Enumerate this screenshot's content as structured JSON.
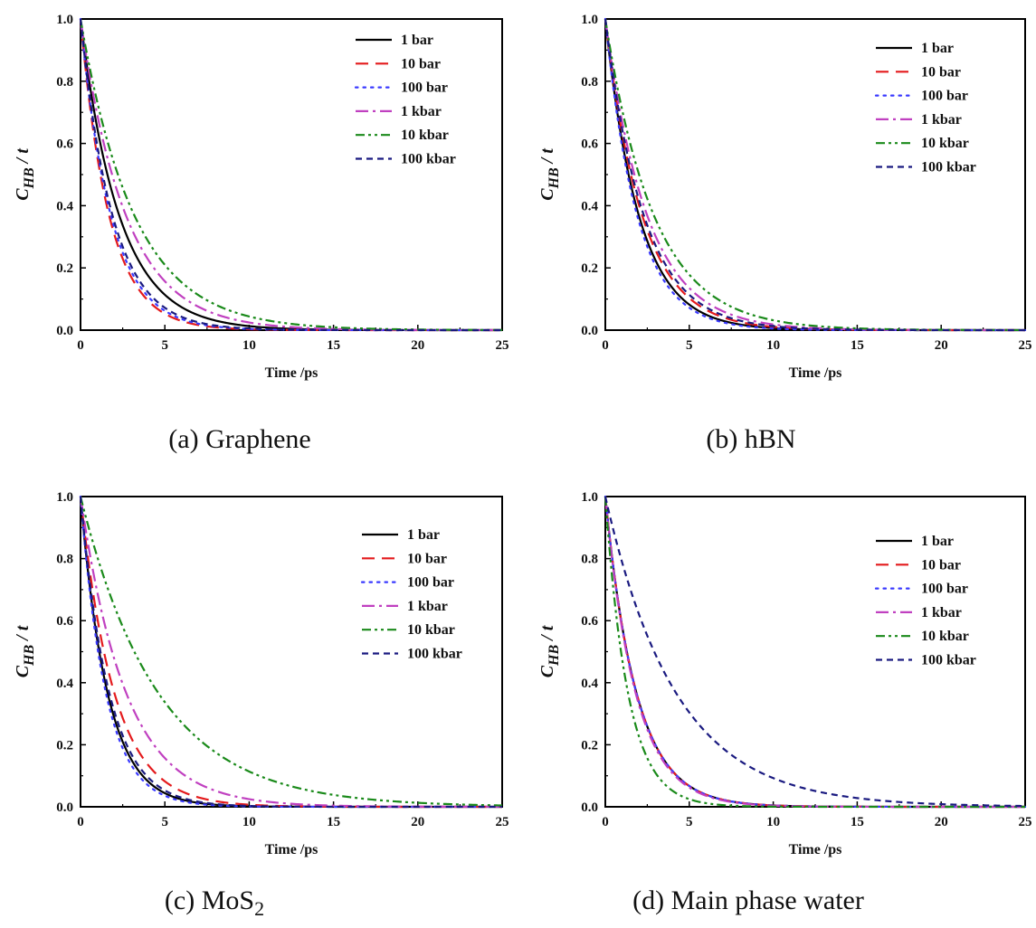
{
  "chart_data": [
    {
      "type": "line",
      "caption": "(a) Graphene",
      "xlabel": "Time /ps",
      "ylabel": "C_HB / t",
      "xlim": [
        0,
        25
      ],
      "ylim": [
        0,
        1.0
      ],
      "xticks": [
        0,
        5,
        10,
        15,
        20,
        25
      ],
      "yticks": [
        0.0,
        0.2,
        0.4,
        0.6,
        0.8,
        1.0
      ],
      "legend_position": "top-right",
      "series": [
        {
          "name": "1 bar",
          "color": "#000000",
          "dash": "solid",
          "tau": 2.3
        },
        {
          "name": "10 bar",
          "color": "#e41a1c",
          "dash": "long-dash",
          "tau": 1.7
        },
        {
          "name": "100 bar",
          "color": "#3a3aff",
          "dash": "dot",
          "tau": 1.8
        },
        {
          "name": "1 kbar",
          "color": "#c040c0",
          "dash": "dash-dot",
          "tau": 2.7
        },
        {
          "name": "10 kbar",
          "color": "#1a8a1a",
          "dash": "dash-dot-dot",
          "tau": 3.2
        },
        {
          "name": "100 kbar",
          "color": "#1a1a80",
          "dash": "short-dash",
          "tau": 1.9
        }
      ]
    },
    {
      "type": "line",
      "caption": "(b) hBN",
      "xlabel": "Time /ps",
      "ylabel": "C_HB / t",
      "xlim": [
        0,
        25
      ],
      "ylim": [
        0,
        1.0
      ],
      "xticks": [
        0,
        5,
        10,
        15,
        20,
        25
      ],
      "yticks": [
        0.0,
        0.2,
        0.4,
        0.6,
        0.8,
        1.0
      ],
      "legend_position": "top-right",
      "series": [
        {
          "name": "1 bar",
          "color": "#000000",
          "dash": "solid",
          "tau": 2.0
        },
        {
          "name": "10 bar",
          "color": "#e41a1c",
          "dash": "long-dash",
          "tau": 2.2
        },
        {
          "name": "100 bar",
          "color": "#3a3aff",
          "dash": "dot",
          "tau": 1.9
        },
        {
          "name": "1 kbar",
          "color": "#c040c0",
          "dash": "dash-dot",
          "tau": 2.5
        },
        {
          "name": "10 kbar",
          "color": "#1a8a1a",
          "dash": "dash-dot-dot",
          "tau": 2.9
        },
        {
          "name": "100 kbar",
          "color": "#1a1a80",
          "dash": "short-dash",
          "tau": 2.3
        }
      ]
    },
    {
      "type": "line",
      "caption": "(c) MoS",
      "caption_subscript": "2",
      "xlabel": "Time /ps",
      "ylabel": "C_HB / t",
      "xlim": [
        0,
        25
      ],
      "ylim": [
        0,
        1.0
      ],
      "xticks": [
        0,
        5,
        10,
        15,
        20,
        25
      ],
      "yticks": [
        0.0,
        0.2,
        0.4,
        0.6,
        0.8,
        1.0
      ],
      "legend_position": "top-right",
      "series": [
        {
          "name": "1 bar",
          "color": "#000000",
          "dash": "solid",
          "tau": 1.6
        },
        {
          "name": "10 bar",
          "color": "#e41a1c",
          "dash": "long-dash",
          "tau": 2.0
        },
        {
          "name": "100 bar",
          "color": "#3a3aff",
          "dash": "dot",
          "tau": 1.5
        },
        {
          "name": "1 kbar",
          "color": "#c040c0",
          "dash": "dash-dot",
          "tau": 2.7
        },
        {
          "name": "10 kbar",
          "color": "#1a8a1a",
          "dash": "dash-dot-dot",
          "tau": 4.6
        },
        {
          "name": "100 kbar",
          "color": "#1a1a80",
          "dash": "short-dash",
          "tau": 1.7
        }
      ]
    },
    {
      "type": "line",
      "caption": "(d) Main phase water",
      "xlabel": "Time /ps",
      "ylabel": "C_HB / t",
      "xlim": [
        0,
        25
      ],
      "ylim": [
        0,
        1.0
      ],
      "xticks": [
        0,
        5,
        10,
        15,
        20,
        25
      ],
      "yticks": [
        0.0,
        0.2,
        0.4,
        0.6,
        0.8,
        1.0
      ],
      "legend_position": "top-right",
      "series": [
        {
          "name": "1 bar",
          "color": "#000000",
          "dash": "solid",
          "tau": 1.85
        },
        {
          "name": "10 bar",
          "color": "#e41a1c",
          "dash": "long-dash",
          "tau": 1.85
        },
        {
          "name": "100 bar",
          "color": "#3a3aff",
          "dash": "dot",
          "tau": 1.85
        },
        {
          "name": "1 kbar",
          "color": "#c040c0",
          "dash": "dash-dot",
          "tau": 1.8
        },
        {
          "name": "10 kbar",
          "color": "#1a8a1a",
          "dash": "dash-dot-dot",
          "tau": 1.35
        },
        {
          "name": "100 kbar",
          "color": "#1a1a80",
          "dash": "short-dash",
          "tau": 4.2
        }
      ]
    }
  ]
}
